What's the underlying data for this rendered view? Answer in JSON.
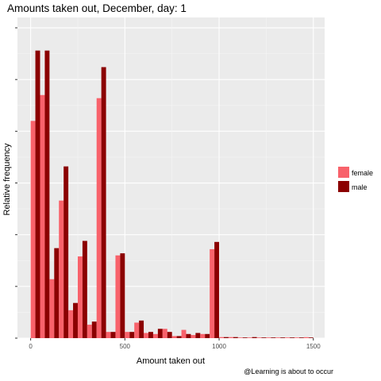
{
  "chart_data": {
    "type": "bar",
    "title": "Amounts taken out, December, day: 1",
    "xlabel": "Amount taken out",
    "ylabel": "Relative frequency",
    "caption": "@Learning is about to occur",
    "xlim": [
      -70,
      1560
    ],
    "ylim": [
      0,
      0.31
    ],
    "x_ticks": [
      0,
      500,
      1000,
      1500
    ],
    "y_ticks_labeled": false,
    "bin_width": 50,
    "bin_centers": [
      25,
      75,
      125,
      175,
      225,
      275,
      325,
      375,
      425,
      475,
      525,
      575,
      625,
      675,
      725,
      775,
      825,
      875,
      925,
      975,
      1025,
      1075,
      1125,
      1175,
      1225,
      1275,
      1325,
      1375,
      1425,
      1475
    ],
    "grid": true,
    "legend_position": "right",
    "series": [
      {
        "name": "female",
        "color": "#f8626b",
        "values": [
          0.21,
          0.235,
          0.057,
          0.133,
          0.027,
          0.079,
          0.013,
          0.232,
          0.006,
          0.08,
          0.006,
          0.015,
          0.005,
          0.004,
          0.009,
          0.002,
          0.008,
          0.003,
          0.004,
          0.086,
          0.001,
          0.001,
          0.0005,
          0.0003,
          0.0003,
          0.0002,
          0.0002,
          0.0002,
          0.0002,
          0.0009
        ]
      },
      {
        "name": "male",
        "color": "#8b0000",
        "values": [
          0.278,
          0.278,
          0.087,
          0.166,
          0.034,
          0.094,
          0.016,
          0.262,
          0.006,
          0.082,
          0.006,
          0.017,
          0.006,
          0.009,
          0.006,
          0.002,
          0.004,
          0.005,
          0.004,
          0.093,
          0.001,
          0.001,
          0.0005,
          0.001,
          0.0003,
          0.0002,
          0.0002,
          0.0002,
          0.0002,
          0.0002
        ]
      }
    ]
  }
}
